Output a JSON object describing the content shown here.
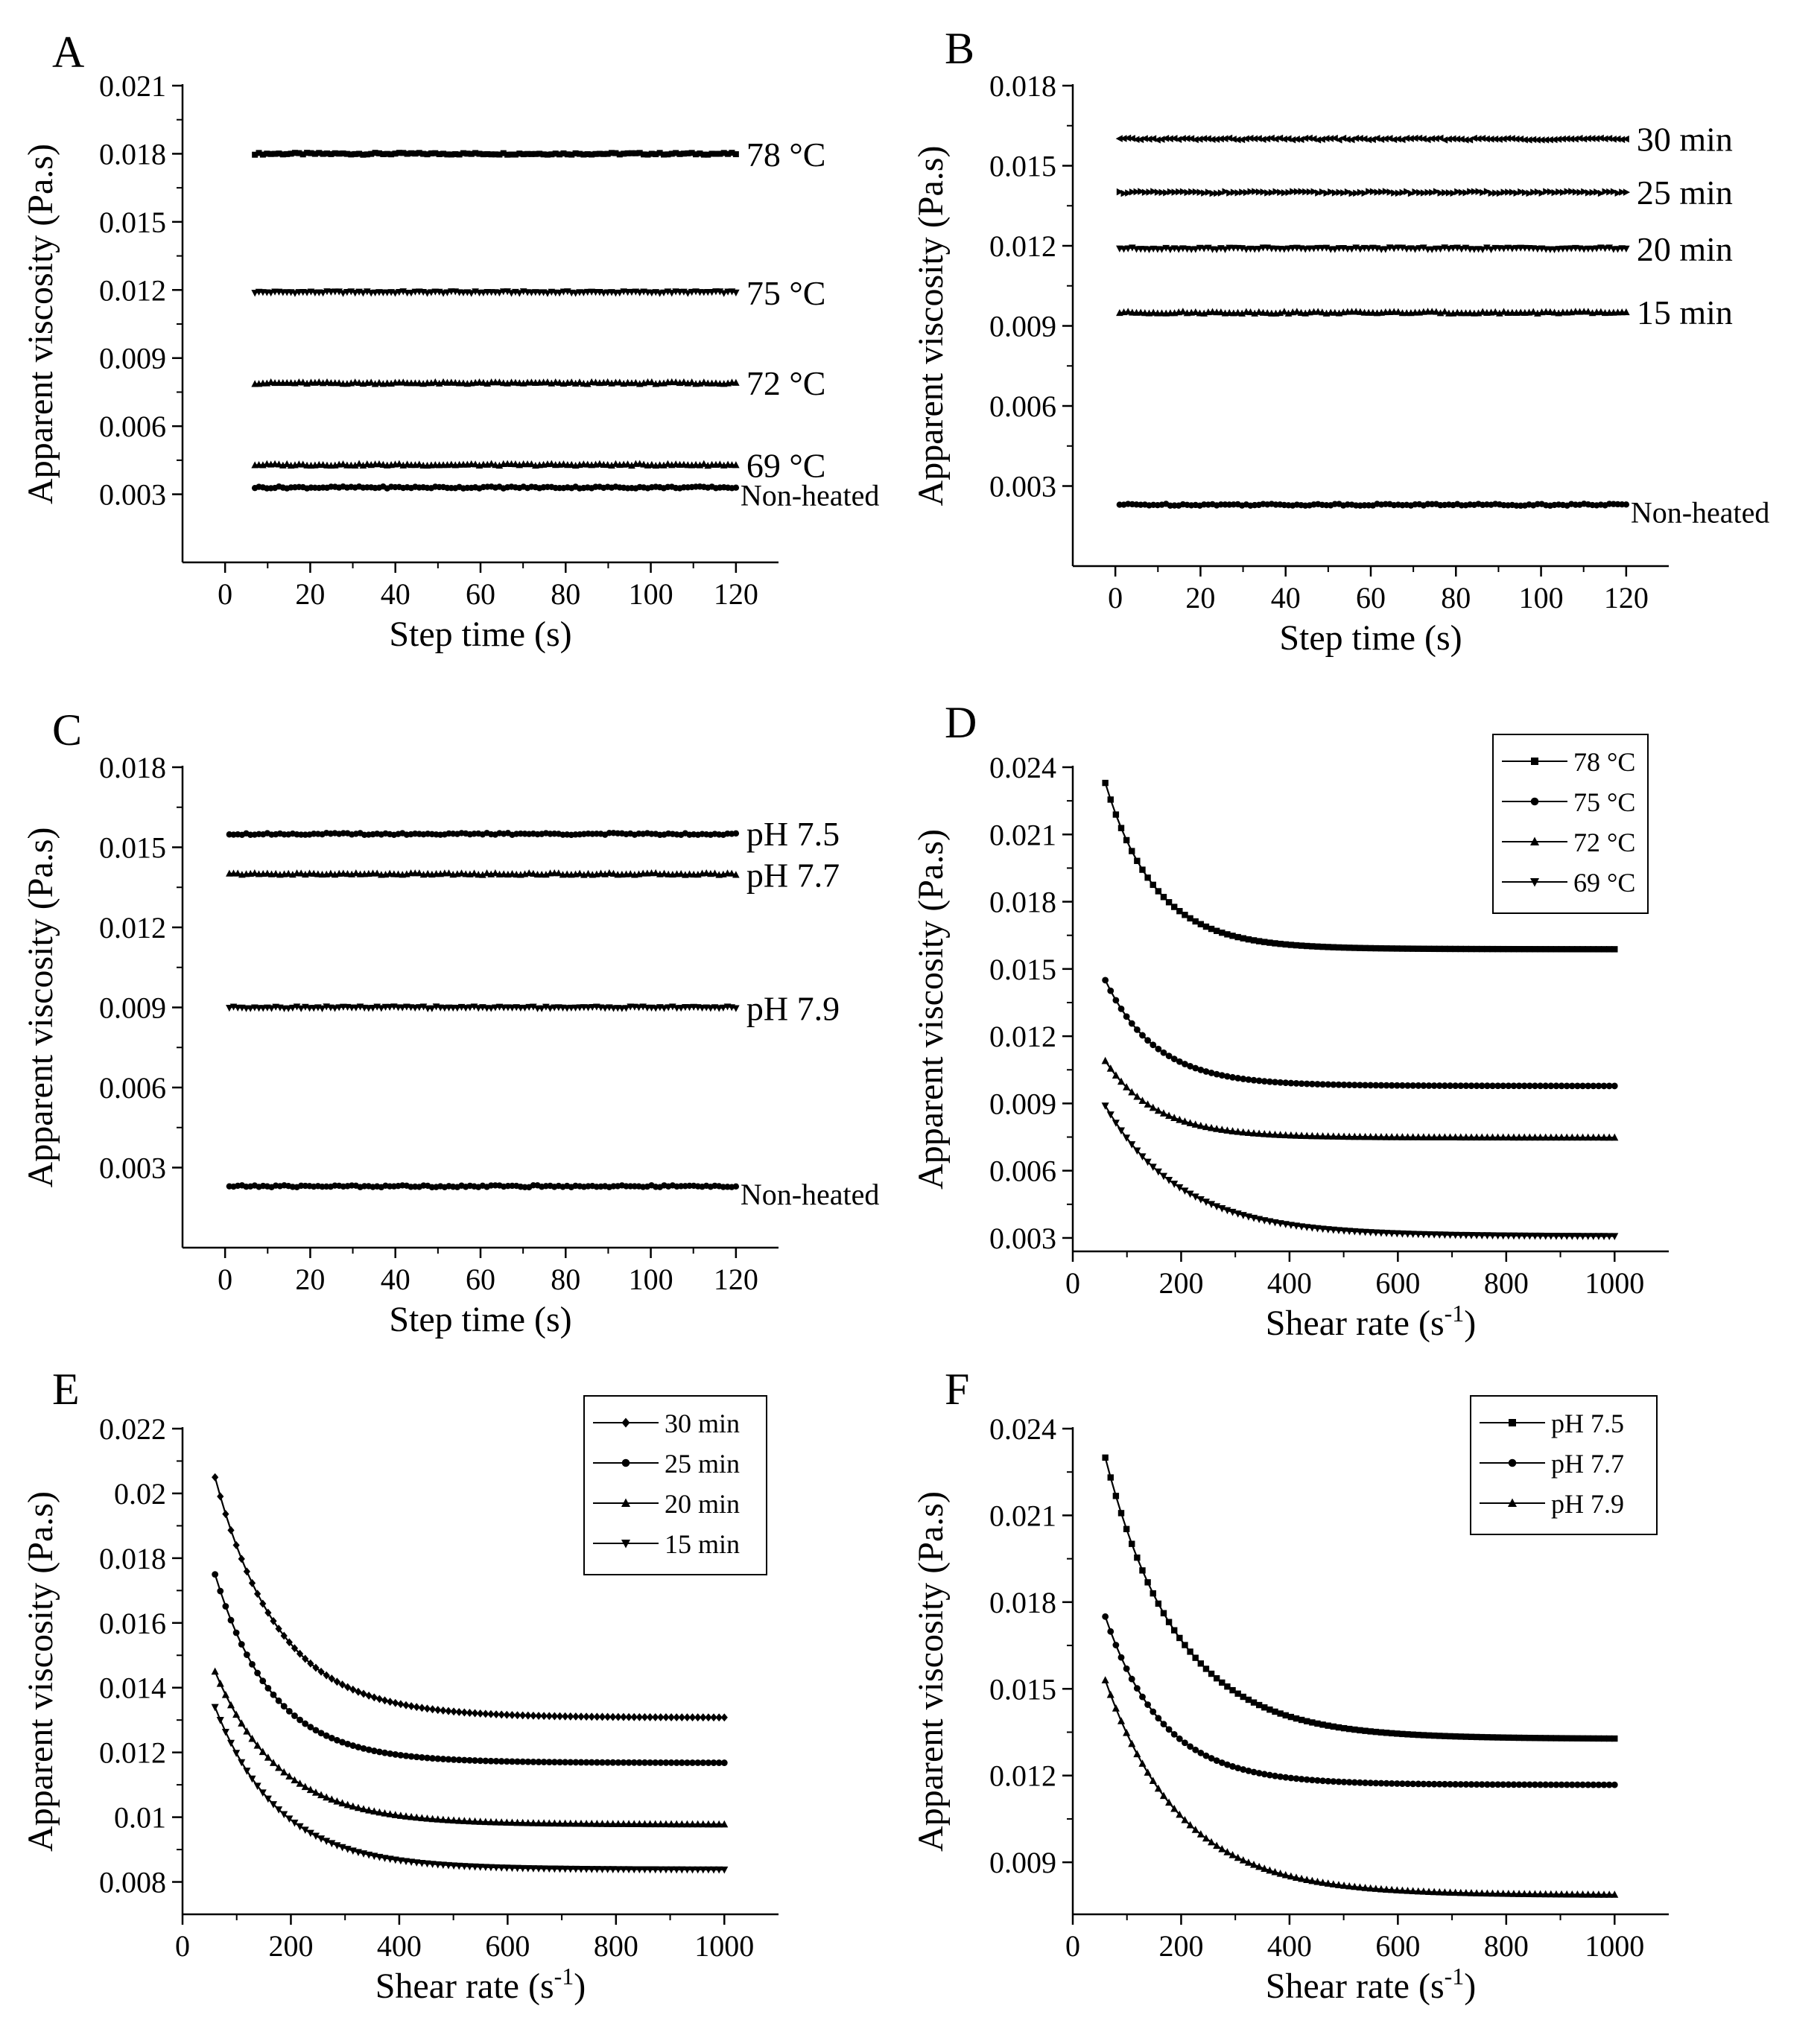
{
  "chart_data": [
    {
      "type": "scatter",
      "panel": "A",
      "xlabel": "Step time (s)",
      "ylabel": "Apparent viscosity (Pa.s)",
      "xlim": [
        -10,
        130
      ],
      "ylim": [
        0.0,
        0.021
      ],
      "xticks": [
        0,
        20,
        40,
        60,
        80,
        100,
        120
      ],
      "yticks": [
        0.003,
        0.006,
        0.009,
        0.012,
        0.015,
        0.018,
        0.021
      ],
      "series": [
        {
          "name": "78 °C",
          "marker": "square",
          "x_start": 7,
          "x_end": 120,
          "value": 0.018,
          "label_size": "large"
        },
        {
          "name": "75 °C",
          "marker": "triangle-down",
          "x_start": 7,
          "x_end": 120,
          "value": 0.0119,
          "label_size": "large"
        },
        {
          "name": "72 °C",
          "marker": "triangle",
          "x_start": 7,
          "x_end": 120,
          "value": 0.0079,
          "label_size": "large"
        },
        {
          "name": "69 °C",
          "marker": "triangle",
          "x_start": 7,
          "x_end": 120,
          "value": 0.0043,
          "label_size": "large"
        },
        {
          "name": "Non-heated",
          "marker": "circle",
          "x_start": 7,
          "x_end": 120,
          "value": 0.0033,
          "label_size": "small"
        }
      ]
    },
    {
      "type": "scatter",
      "panel": "B",
      "xlabel": "Step time (s)",
      "ylabel": "Apparent viscosity (Pa.s)",
      "xlim": [
        -10,
        130
      ],
      "ylim": [
        0.0,
        0.018
      ],
      "xticks": [
        0,
        20,
        40,
        60,
        80,
        100,
        120
      ],
      "yticks": [
        0.003,
        0.006,
        0.009,
        0.012,
        0.015,
        0.018
      ],
      "series": [
        {
          "name": "30 min",
          "marker": "triangle-left",
          "x_start": 1,
          "x_end": 120,
          "value": 0.016,
          "label_size": "large"
        },
        {
          "name": "25 min",
          "marker": "triangle-right",
          "x_start": 1,
          "x_end": 120,
          "value": 0.014,
          "label_size": "large"
        },
        {
          "name": "20 min",
          "marker": "triangle-down",
          "x_start": 1,
          "x_end": 120,
          "value": 0.0119,
          "label_size": "large"
        },
        {
          "name": "15 min",
          "marker": "triangle",
          "x_start": 1,
          "x_end": 120,
          "value": 0.0095,
          "label_size": "large"
        },
        {
          "name": "Non-heated",
          "marker": "circle",
          "x_start": 1,
          "x_end": 120,
          "value": 0.0023,
          "label_size": "small"
        }
      ]
    },
    {
      "type": "scatter",
      "panel": "C",
      "xlabel": "Step time (s)",
      "ylabel": "Apparent viscosity (Pa.s)",
      "xlim": [
        -10,
        130
      ],
      "ylim": [
        0.0,
        0.018
      ],
      "xticks": [
        0,
        20,
        40,
        60,
        80,
        100,
        120
      ],
      "yticks": [
        0.003,
        0.006,
        0.009,
        0.012,
        0.015,
        0.018
      ],
      "series": [
        {
          "name": "pH 7.5",
          "marker": "circle",
          "x_start": 1,
          "x_end": 120,
          "value": 0.0155,
          "label_size": "large"
        },
        {
          "name": "pH 7.7",
          "marker": "triangle",
          "x_start": 1,
          "x_end": 120,
          "value": 0.014,
          "label_size": "large"
        },
        {
          "name": "pH 7.9",
          "marker": "triangle-down",
          "x_start": 1,
          "x_end": 120,
          "value": 0.009,
          "label_size": "large"
        },
        {
          "name": "Non-heated",
          "marker": "circle",
          "x_start": 1,
          "x_end": 120,
          "value": 0.0023,
          "label_size": "small"
        }
      ]
    },
    {
      "type": "scatter",
      "panel": "D",
      "xlabel": "Shear rate (s",
      "xlabel_sup": "-1",
      "xlabel_end": ")",
      "ylabel": "Apparent viscosity (Pa.s)",
      "xlim": [
        0,
        1100
      ],
      "ylim": [
        0.0024,
        0.024
      ],
      "xticks": [
        0,
        200,
        400,
        600,
        800,
        1000
      ],
      "yticks": [
        0.003,
        0.006,
        0.009,
        0.012,
        0.015,
        0.018,
        0.021,
        0.024
      ],
      "legend": "top-right",
      "series": [
        {
          "name": "78 °C",
          "marker": "square",
          "x_start": 60,
          "x_end": 1000,
          "y_start": 0.0233,
          "y_end": 0.0159,
          "k": 0.0108
        },
        {
          "name": "75 °C",
          "marker": "circle",
          "x_start": 60,
          "x_end": 1000,
          "y_start": 0.0145,
          "y_end": 0.0098,
          "k": 0.0108
        },
        {
          "name": "72 °C",
          "marker": "triangle",
          "x_start": 60,
          "x_end": 1000,
          "y_start": 0.0109,
          "y_end": 0.0075,
          "k": 0.0108
        },
        {
          "name": "69 °C",
          "marker": "triangle-down",
          "x_start": 60,
          "x_end": 1000,
          "y_start": 0.0089,
          "y_end": 0.0031,
          "k": 0.0072
        }
      ]
    },
    {
      "type": "scatter",
      "panel": "E",
      "xlabel": "Shear rate (s",
      "xlabel_sup": "-1",
      "xlabel_end": ")",
      "ylabel": "Apparent viscosity (Pa.s)",
      "xlim": [
        0,
        1100
      ],
      "ylim": [
        0.007,
        0.022
      ],
      "xticks": [
        0,
        200,
        400,
        600,
        800,
        1000
      ],
      "yticks": [
        0.008,
        0.01,
        0.012,
        0.014,
        0.016,
        0.018,
        0.02,
        0.022
      ],
      "ytick_labels": [
        "0.008",
        "0.01",
        "0.012",
        "0.014",
        "0.016",
        "0.018",
        "0.02",
        "0.022"
      ],
      "legend": "top-right",
      "series": [
        {
          "name": "30 min",
          "marker": "diamond",
          "x_start": 60,
          "x_end": 1000,
          "y_start": 0.0205,
          "y_end": 0.0131,
          "k": 0.0085
        },
        {
          "name": "25 min",
          "marker": "circle",
          "x_start": 60,
          "x_end": 1000,
          "y_start": 0.0175,
          "y_end": 0.0117,
          "k": 0.0095
        },
        {
          "name": "20 min",
          "marker": "triangle",
          "x_start": 60,
          "x_end": 1000,
          "y_start": 0.0145,
          "y_end": 0.0098,
          "k": 0.0085
        },
        {
          "name": "15 min",
          "marker": "triangle-down",
          "x_start": 60,
          "x_end": 1000,
          "y_start": 0.0134,
          "y_end": 0.0084,
          "k": 0.0085
        }
      ]
    },
    {
      "type": "scatter",
      "panel": "F",
      "xlabel": "Shear rate (s",
      "xlabel_sup": "-1",
      "xlabel_end": ")",
      "ylabel": "Apparent viscosity (Pa.s)",
      "xlim": [
        0,
        1100
      ],
      "ylim": [
        0.0072,
        0.024
      ],
      "xticks": [
        0,
        200,
        400,
        600,
        800,
        1000
      ],
      "yticks": [
        0.009,
        0.012,
        0.015,
        0.018,
        0.021,
        0.024
      ],
      "legend": "top-right",
      "series": [
        {
          "name": "pH 7.5",
          "marker": "square",
          "x_start": 60,
          "x_end": 1000,
          "y_start": 0.023,
          "y_end": 0.0133,
          "k": 0.0075
        },
        {
          "name": "pH 7.7",
          "marker": "circle",
          "x_start": 60,
          "x_end": 1000,
          "y_start": 0.0175,
          "y_end": 0.0117,
          "k": 0.0095
        },
        {
          "name": "pH 7.9",
          "marker": "triangle",
          "x_start": 60,
          "x_end": 1000,
          "y_start": 0.0153,
          "y_end": 0.0079,
          "k": 0.0072
        }
      ]
    }
  ]
}
